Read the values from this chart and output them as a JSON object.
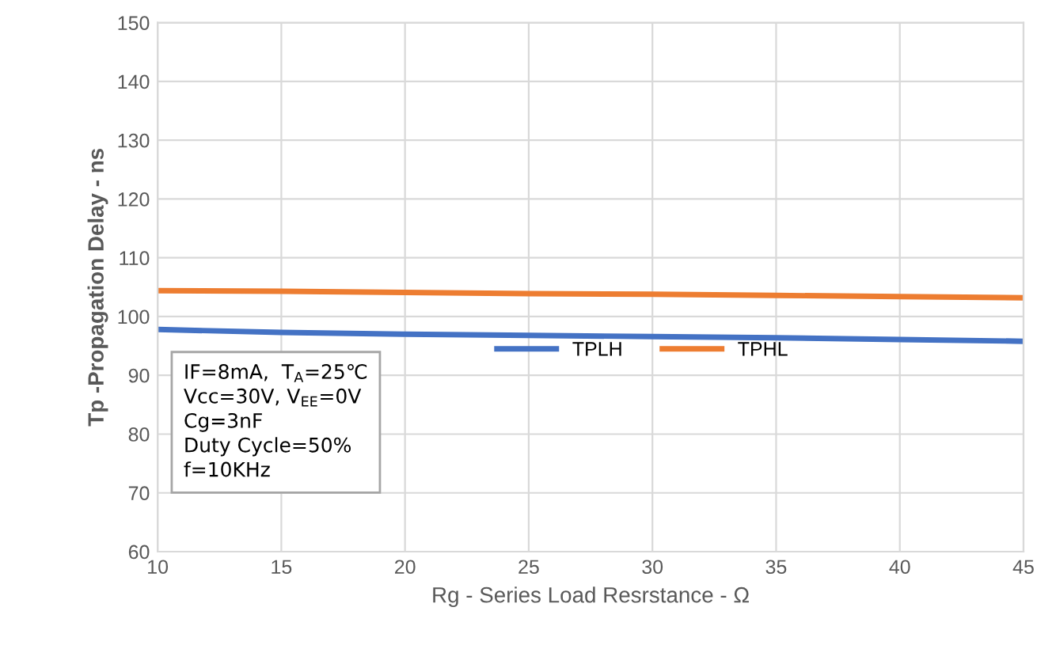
{
  "chart_data": {
    "type": "line",
    "xlabel": "Rg - Series Load Resrstance - Ω",
    "ylabel": "Tp -Propagation Delay - ns",
    "x": [
      10,
      15,
      20,
      25,
      30,
      35,
      40,
      45
    ],
    "series": [
      {
        "name": "TPLH",
        "color": "#4472c4",
        "values": [
          97.8,
          97.3,
          97.0,
          96.8,
          96.6,
          96.4,
          96.1,
          95.8
        ]
      },
      {
        "name": "TPHL",
        "color": "#ed7d31",
        "values": [
          104.4,
          104.3,
          104.1,
          103.9,
          103.8,
          103.6,
          103.4,
          103.2
        ]
      }
    ],
    "xlim": [
      10,
      45
    ],
    "xticks": [
      10,
      15,
      20,
      25,
      30,
      35,
      40,
      45
    ],
    "ylim": [
      60,
      150
    ],
    "yticks": [
      60,
      70,
      80,
      90,
      100,
      110,
      120,
      130,
      140,
      150
    ],
    "grid": true,
    "legend": "center",
    "marker": "none",
    "line_style": "solid",
    "annotations": [
      "IF=8mA,  T$_{A}$=25℃\nVcc=30V, V$_{EE}$=0V\nCg=3nF\nDuty Cycle=50%\nf=10KHz"
    ]
  }
}
